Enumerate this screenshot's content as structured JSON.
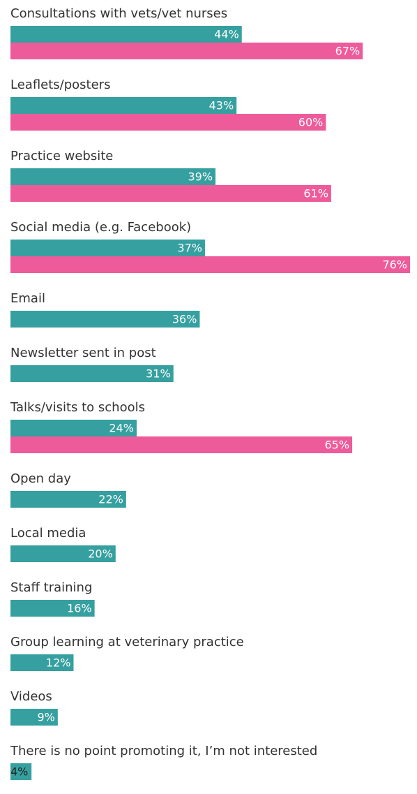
{
  "chart_data": {
    "type": "hbar",
    "categories": [
      "Consultations with vets/vet nurses",
      "Leaflets/posters",
      "Practice website",
      "Social media (e.g. Facebook)",
      "Email",
      "Newsletter sent in post",
      "Talks/visits to schools",
      "Open day",
      "Local media",
      "Staff training",
      "Group learning at veterinary practice",
      "Videos",
      "There is no point promoting it, I’m not interested"
    ],
    "series": [
      {
        "color": "#35a09f",
        "values": [
          44,
          43,
          39,
          37,
          36,
          31,
          24,
          22,
          20,
          16,
          12,
          9,
          4
        ],
        "value_labels": [
          "44%",
          "43%",
          "39%",
          "37%",
          "36%",
          "31%",
          "24%",
          "22%",
          "20%",
          "16%",
          "12%",
          "9%",
          "4%"
        ]
      },
      {
        "color": "#ee5b9a",
        "values": [
          67,
          60,
          61,
          76,
          null,
          null,
          65,
          null,
          null,
          null,
          null,
          null,
          null
        ],
        "value_labels": [
          "67%",
          "60%",
          "61%",
          "76%",
          null,
          null,
          "65%",
          null,
          null,
          null,
          null,
          null,
          null
        ]
      }
    ]
  }
}
